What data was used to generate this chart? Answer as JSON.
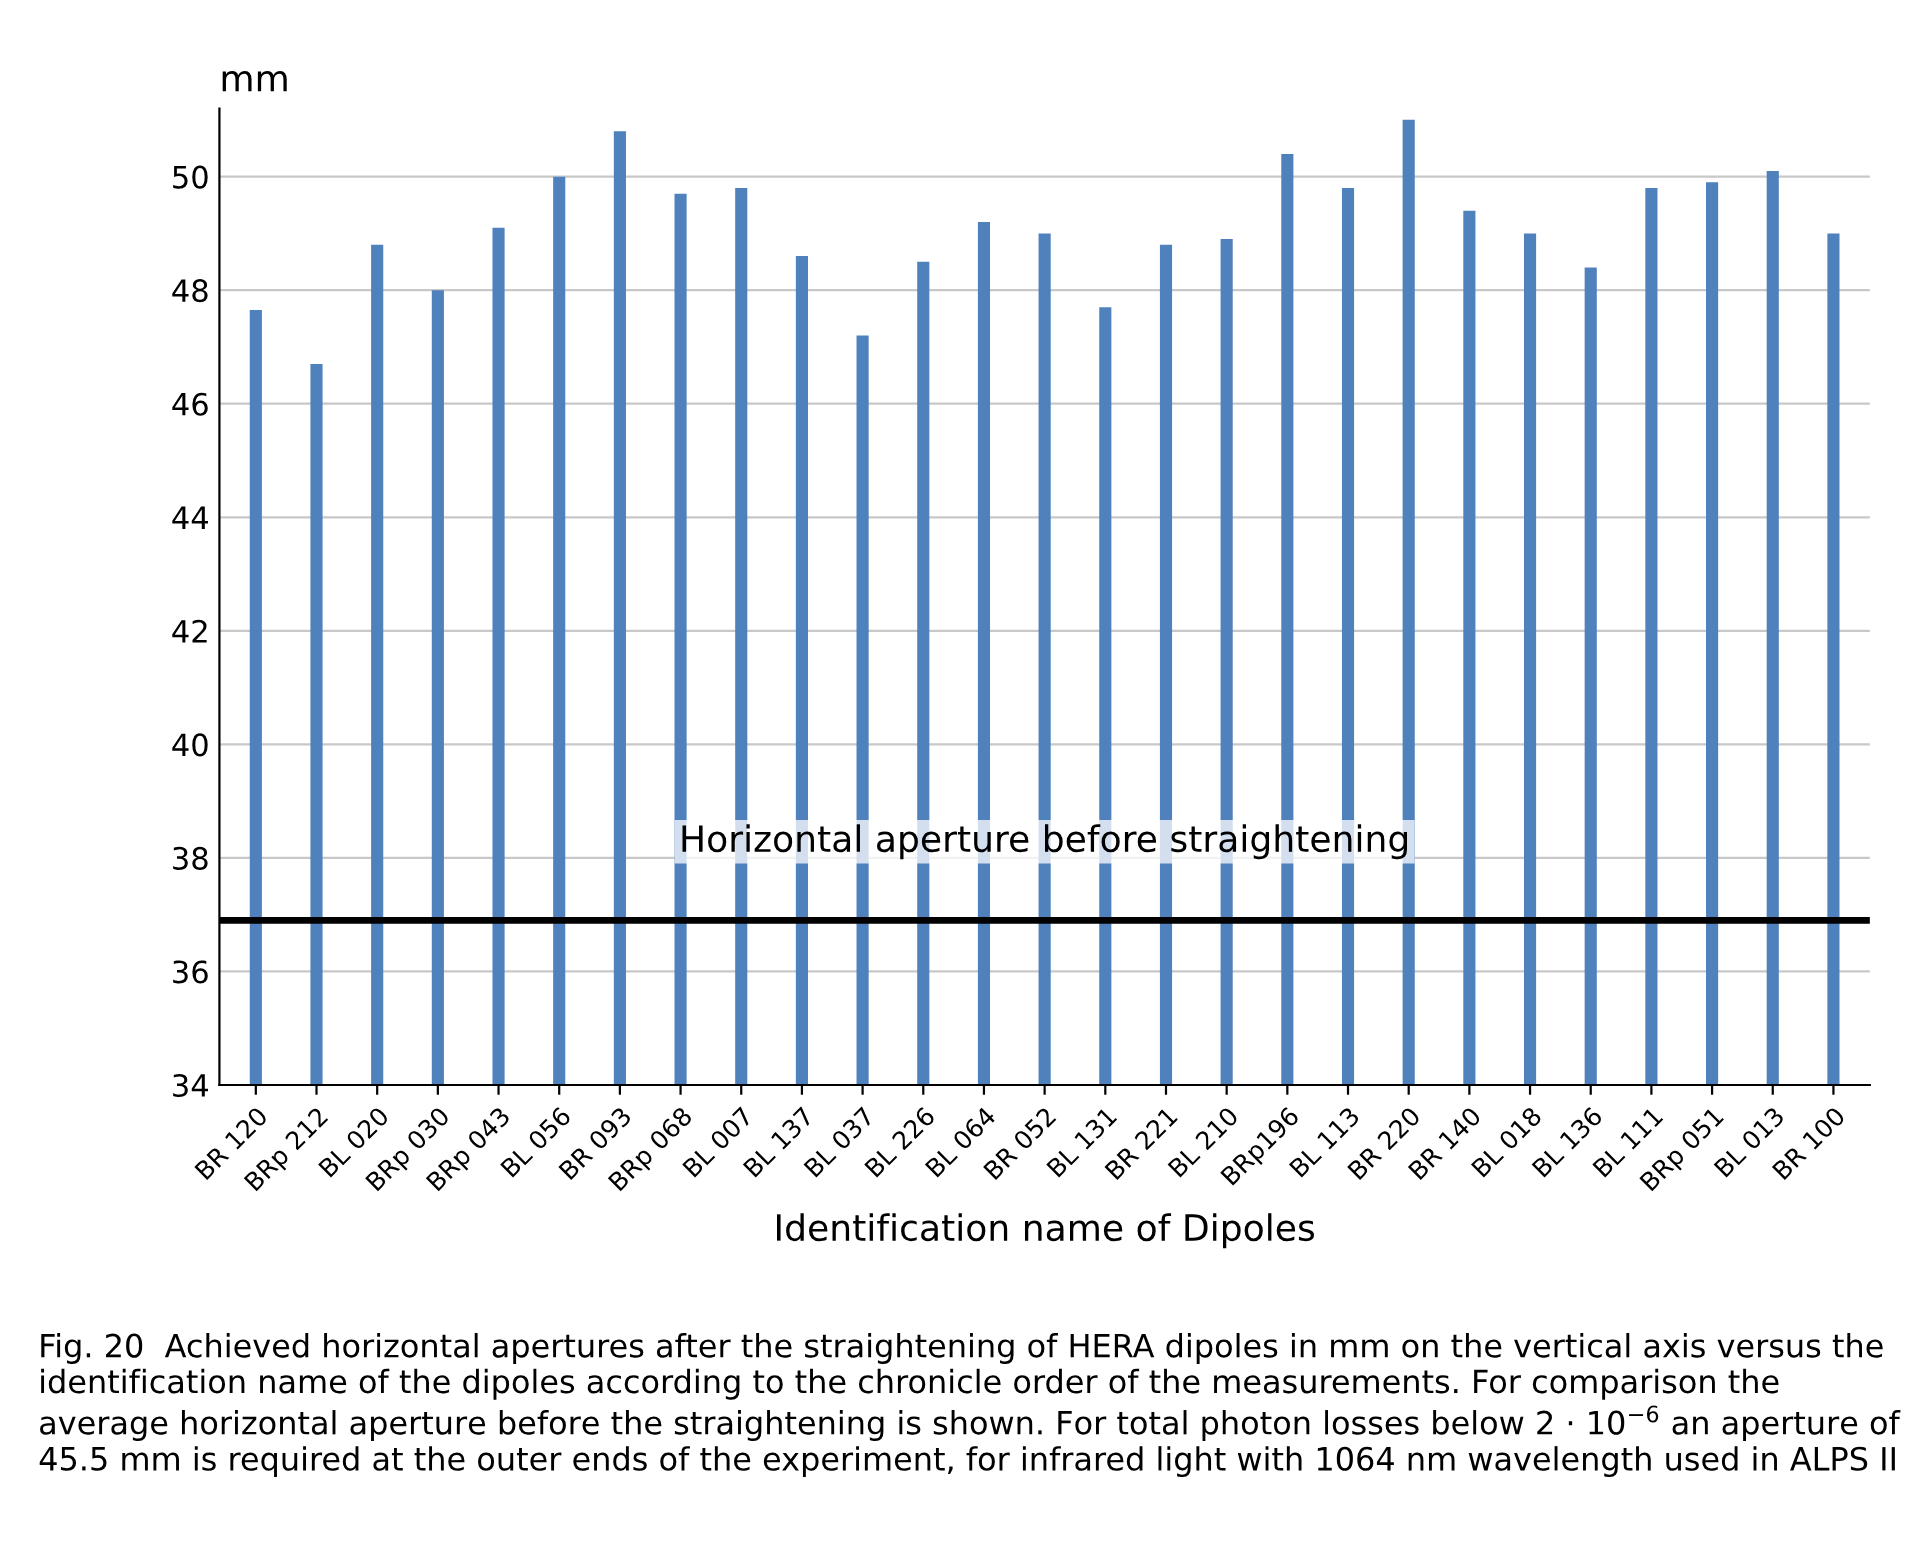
{
  "chart_data": {
    "type": "bar",
    "ylabel": "mm",
    "xlabel": "Identification name of Dipoles",
    "categories": [
      "BR 120",
      "BRp 212",
      "BL 020",
      "BRp 030",
      "BRp 043",
      "BL 056",
      "BR 093",
      "BRp 068",
      "BL 007",
      "BL 137",
      "BL 037",
      "BL 226",
      "BL 064",
      "BR 052",
      "BL 131",
      "BR 221",
      "BL 210",
      "BRp196",
      "BL 113",
      "BR 220",
      "BR 140",
      "BL 018",
      "BL 136",
      "BL 111",
      "BRp 051",
      "BL 013",
      "BR 100"
    ],
    "values": [
      47.65,
      46.7,
      48.8,
      48.0,
      49.1,
      50.0,
      50.8,
      49.7,
      49.8,
      48.6,
      47.2,
      48.5,
      49.2,
      49.0,
      47.7,
      48.8,
      48.9,
      50.4,
      49.8,
      51.0,
      49.4,
      49.0,
      48.4,
      49.8,
      49.9,
      50.1,
      49.0
    ],
    "color": "#4f81bd",
    "ylim": [
      34,
      51.2
    ],
    "yticks": [
      34,
      36,
      38,
      40,
      42,
      44,
      46,
      48,
      50
    ],
    "grid": "y",
    "ref_lines": [
      {
        "axis": "y",
        "value": 36.9,
        "label": "Horizontal aperture before straightening",
        "color": "#000000"
      }
    ],
    "annotations": [
      "Fig. 20  Achieved horizontal apertures after the straightening of HERA dipoles in mm on the vertical axis versus the identification name of the dipoles according to the chronicle order of the measurements. For comparison the average horizontal aperture before the straightening is shown. For total photon losses below 2 · 10$^{−6}$ an aperture of 45.5 mm is required at the outer ends of the experiment, for infrared light with 1064 nm wavelength used in ALPS II"
    ]
  }
}
